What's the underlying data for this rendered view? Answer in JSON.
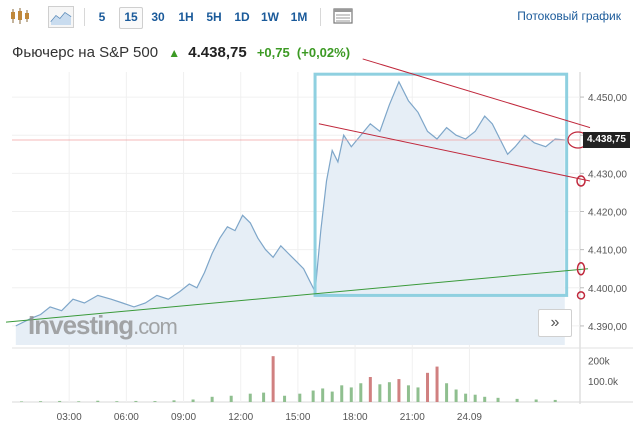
{
  "toolbar": {
    "timeframes": [
      "5",
      "15",
      "30",
      "1H",
      "5H",
      "1D",
      "1W",
      "1M"
    ],
    "active_timeframe": "15",
    "stream_label": "Потоковый график"
  },
  "header": {
    "name": "Фьючерс на S&P 500",
    "direction_arrow": "▲",
    "price": "4.438,75",
    "change": "+0,75",
    "change_pct": "(+0,02%)"
  },
  "watermark": {
    "brand": "Investing",
    "suffix": ".com"
  },
  "more_button": {
    "label": "»"
  },
  "colors": {
    "line": "#7ea6c9",
    "area": "#e6eef6",
    "up_bar": "#8fbf8f",
    "down_bar": "#d08080",
    "box": "#8fd0e0",
    "trend_red": "#c0283c",
    "trend_green": "#3a9a3a",
    "up_text": "#3c9a24"
  },
  "chart_data": {
    "type": "area",
    "price_axis": {
      "min": 4385,
      "max": 4455,
      "ticks": [
        "4.450,00",
        "4.440,00",
        "4.430,00",
        "4.420,00",
        "4.410,00",
        "4.400,00",
        "4.390,00"
      ],
      "tick_values": [
        4450,
        4440,
        4430,
        4420,
        4410,
        4400,
        4390
      ]
    },
    "current_price_label": "4.438,75",
    "current_price": 4438.75,
    "time_axis": {
      "ticks": [
        "03:00",
        "06:00",
        "09:00",
        "12:00",
        "15:00",
        "18:00",
        "21:00",
        "24.09"
      ],
      "tick_hours": [
        3,
        6,
        9,
        12,
        15,
        18,
        21,
        24
      ]
    },
    "volume_axis": {
      "ticks": [
        "200k",
        "100.0k"
      ],
      "tick_values": [
        200000,
        100000
      ],
      "max": 240000
    },
    "series": [
      {
        "values": [
          [
            0.2,
            4390
          ],
          [
            1,
            4392
          ],
          [
            1.5,
            4393
          ],
          [
            2,
            4395
          ],
          [
            2.6,
            4394
          ],
          [
            3.2,
            4397
          ],
          [
            3.8,
            4396
          ],
          [
            4.5,
            4398
          ],
          [
            5.2,
            4397
          ],
          [
            5.8,
            4396
          ],
          [
            6.4,
            4395
          ],
          [
            7,
            4396
          ],
          [
            7.6,
            4398
          ],
          [
            8.2,
            4397
          ],
          [
            8.8,
            4399
          ],
          [
            9.3,
            4401
          ],
          [
            9.7,
            4400
          ],
          [
            10.1,
            4404
          ],
          [
            10.5,
            4409
          ],
          [
            10.9,
            4413
          ],
          [
            11.3,
            4416
          ],
          [
            11.7,
            4415
          ],
          [
            12.1,
            4419
          ],
          [
            12.5,
            4417
          ],
          [
            12.9,
            4413
          ],
          [
            13.3,
            4410
          ],
          [
            13.7,
            4408
          ],
          [
            14.1,
            4411
          ],
          [
            14.5,
            4409
          ],
          [
            14.9,
            4407
          ],
          [
            15.3,
            4405
          ],
          [
            15.6,
            4402
          ],
          [
            15.9,
            4399
          ],
          [
            16.2,
            4415
          ],
          [
            16.5,
            4428
          ],
          [
            16.8,
            4436
          ],
          [
            17.1,
            4433
          ],
          [
            17.4,
            4440
          ],
          [
            17.8,
            4437
          ],
          [
            18.3,
            4440
          ],
          [
            18.8,
            4443
          ],
          [
            19.3,
            4441
          ],
          [
            19.8,
            4448
          ],
          [
            20.3,
            4454
          ],
          [
            20.8,
            4449
          ],
          [
            21.3,
            4446
          ],
          [
            21.8,
            4441
          ],
          [
            22.3,
            4439
          ],
          [
            22.8,
            4442
          ],
          [
            23.3,
            4440
          ],
          [
            23.8,
            4439
          ],
          [
            24.3,
            4441
          ],
          [
            24.8,
            4445
          ],
          [
            25.2,
            4443
          ],
          [
            25.6,
            4439
          ],
          [
            26,
            4435
          ],
          [
            26.4,
            4437
          ],
          [
            26.9,
            4440
          ],
          [
            27.4,
            4438
          ],
          [
            28,
            4437
          ],
          [
            28.5,
            4439
          ],
          [
            29,
            4438.75
          ]
        ]
      }
    ],
    "volume": [
      [
        0.5,
        3000
      ],
      [
        1.5,
        4000
      ],
      [
        2.5,
        5000
      ],
      [
        3.5,
        3500
      ],
      [
        4.5,
        6000
      ],
      [
        5.5,
        4000
      ],
      [
        6.5,
        5000
      ],
      [
        7.5,
        4500
      ],
      [
        8.5,
        8000
      ],
      [
        9.5,
        12000
      ],
      [
        10.5,
        25000
      ],
      [
        11.5,
        30000
      ],
      [
        12.5,
        40000
      ],
      [
        13.2,
        45000
      ],
      [
        13.7,
        220000
      ],
      [
        14.3,
        30000
      ],
      [
        15.1,
        40000
      ],
      [
        15.8,
        55000
      ],
      [
        16.3,
        65000
      ],
      [
        16.8,
        50000
      ],
      [
        17.3,
        80000
      ],
      [
        17.8,
        70000
      ],
      [
        18.3,
        90000
      ],
      [
        18.8,
        120000
      ],
      [
        19.3,
        85000
      ],
      [
        19.8,
        95000
      ],
      [
        20.3,
        110000
      ],
      [
        20.8,
        80000
      ],
      [
        21.3,
        70000
      ],
      [
        21.8,
        140000
      ],
      [
        22.3,
        170000
      ],
      [
        22.8,
        90000
      ],
      [
        23.3,
        60000
      ],
      [
        23.8,
        40000
      ],
      [
        24.3,
        35000
      ],
      [
        24.8,
        25000
      ],
      [
        25.5,
        20000
      ],
      [
        26.5,
        15000
      ],
      [
        27.5,
        12000
      ],
      [
        28.5,
        10000
      ]
    ]
  }
}
